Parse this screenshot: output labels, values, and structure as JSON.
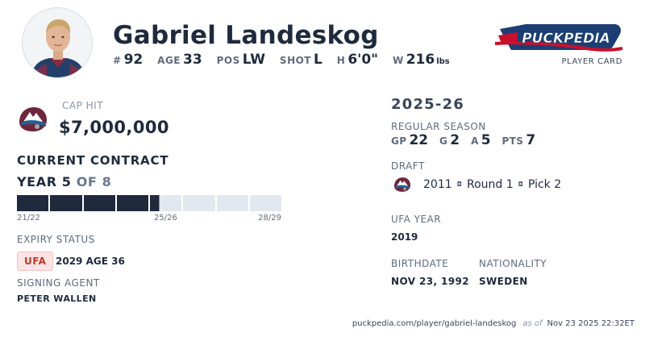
{
  "player": {
    "name": "Gabriel Landeskog",
    "number_label": "#",
    "number": "92",
    "age_label": "AGE",
    "age": "33",
    "pos_label": "POS",
    "pos": "LW",
    "shot_label": "SHOT",
    "shot": "L",
    "height_label": "H",
    "height": "6'0\"",
    "weight_label": "W",
    "weight": "216",
    "weight_unit": "lbs"
  },
  "brand": {
    "logo_text": "PUCKPEDIA",
    "card_label": "PLAYER CARD"
  },
  "contract": {
    "cap_hit_label": "CAP HIT",
    "cap_hit": "$7,000,000",
    "title": "CURRENT CONTRACT",
    "year_prefix": "YEAR 5",
    "year_suffix": "OF 8",
    "years_total": 8,
    "years_elapsed": 4.3,
    "bar_start": "21/22",
    "bar_mid": "25/26",
    "bar_end": "28/29",
    "expiry_label": "EXPIRY STATUS",
    "expiry_badge": "UFA",
    "expiry_detail": "2029 AGE 36",
    "agent_label": "SIGNING AGENT",
    "agent": "PETER WALLEN"
  },
  "season": {
    "title": "2025-26",
    "type_label": "REGULAR SEASON",
    "gp_label": "GP",
    "gp": "22",
    "g_label": "G",
    "g": "2",
    "a_label": "A",
    "a": "5",
    "pts_label": "PTS",
    "pts": "7"
  },
  "draft": {
    "label": "DRAFT",
    "year": "2011",
    "round": "Round 1",
    "pick": "Pick 2",
    "separator": "◘"
  },
  "ufa_year": {
    "label": "UFA YEAR",
    "value": "2019"
  },
  "bio": {
    "birthdate_label": "BIRTHDATE",
    "birthdate": "NOV 23, 1992",
    "nationality_label": "NATIONALITY",
    "nationality": "SWEDEN"
  },
  "footer": {
    "url": "puckpedia.com/player/gabriel-landeskog",
    "as_of_label": "as of",
    "timestamp": "Nov 23 2025 22:32ET"
  },
  "colors": {
    "primary_text": "#1f2a3c",
    "muted_text": "#5f6b7d",
    "bar_filled": "#1f2a3c",
    "bar_empty": "#e3e8f0",
    "ufa_badge_bg": "#fce4e4",
    "ufa_badge_text": "#c0392b",
    "team_burgundy": "#6f263d",
    "team_blue": "#236192"
  }
}
